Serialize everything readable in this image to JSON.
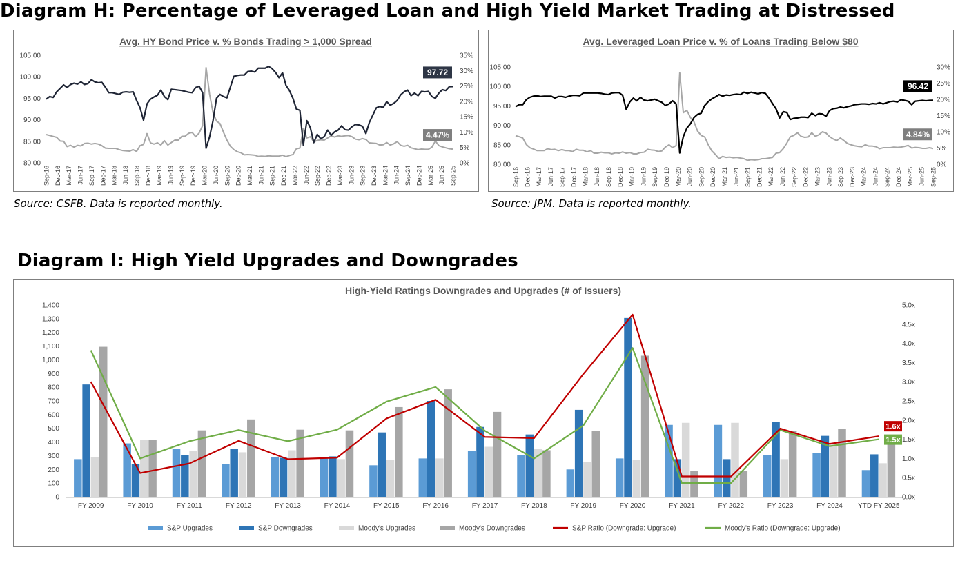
{
  "header_h": "Diagram H: Percentage of Leveraged Loan and High Yield Market Trading at Distressed",
  "header_i": "Diagram I: High Yield Upgrades and Downgrades",
  "source1": "Source: CSFB. Data is reported monthly.",
  "source2": "Source: JPM. Data is reported monthly.",
  "colors": {
    "dark_line": "#1f2535",
    "black_line": "#000000",
    "gray_line": "#a6a6a6",
    "label_dark": "#2e3646",
    "label_gray": "#7f7f7f",
    "sp_up": "#5b9bd5",
    "sp_down": "#2e75b6",
    "moody_up": "#d9d9d9",
    "moody_down": "#a6a6a6",
    "sp_ratio": "#c00000",
    "moody_ratio": "#70ad47"
  },
  "chart_data": [
    {
      "id": "hy",
      "type": "line",
      "title": "Avg. HY Bond Price v. % Bonds Trading > 1,000 Spread",
      "y_left": {
        "min": 80,
        "max": 105,
        "ticks": [
          "105.00",
          "100.00",
          "95.00",
          "90.00",
          "85.00",
          "80.00"
        ]
      },
      "y_right": {
        "min": 0,
        "max": 35,
        "ticks": [
          "35%",
          "30%",
          "25%",
          "20%",
          "15%",
          "10%",
          "5%",
          "0%"
        ]
      },
      "x_labels": [
        "Sep-16",
        "Dec-16",
        "Mar-17",
        "Jun-17",
        "Sep-17",
        "Dec-17",
        "Mar-18",
        "Jun-18",
        "Sep-18",
        "Dec-18",
        "Mar-19",
        "Jun-19",
        "Sep-19",
        "Dec-19",
        "Mar-20",
        "Jun-20",
        "Sep-20",
        "Dec-20",
        "Mar-21",
        "Jun-21",
        "Sep-21",
        "Dec-21",
        "Mar-22",
        "Jun-22",
        "Sep-22",
        "Dec-22",
        "Mar-23",
        "Jun-23",
        "Sep-23",
        "Dec-23",
        "Mar-24",
        "Jun-24",
        "Sep-24",
        "Dec-24",
        "Mar-25",
        "Jun-25",
        "Sep-25"
      ],
      "series": [
        {
          "name": "Avg. HY Bond Price",
          "axis": "left",
          "values": [
            94.8,
            95.4,
            95.2,
            96.5,
            97.3,
            98.1,
            97.5,
            98.2,
            98.5,
            98.3,
            98.8,
            98.2,
            98.4,
            99.3,
            98.8,
            98.6,
            98.7,
            97.6,
            96.3,
            96.3,
            96.1,
            95.9,
            96.4,
            96.5,
            96.4,
            96.5,
            94.5,
            92.8,
            89.9,
            93.7,
            94.8,
            95.3,
            95.7,
            96.9,
            95.4,
            94.7,
            97.1,
            97.0,
            96.9,
            96.8,
            96.6,
            96.4,
            96.3,
            97.5,
            97.8,
            96.3,
            83.4,
            86.0,
            89.8,
            95.0,
            95.9,
            95.4,
            95.1,
            97.6,
            100.1,
            100.3,
            100.4,
            100.4,
            101.2,
            101.3,
            101.1,
            102.0,
            102.0,
            102.0,
            102.4,
            101.9,
            101.0,
            99.8,
            100.9,
            98.0,
            96.8,
            95.0,
            92.5,
            92.2,
            84.1,
            89.8,
            88.2,
            84.7,
            86.6,
            85.6,
            86.1,
            87.6,
            86.4,
            87.2,
            87.6,
            88.6,
            87.7,
            87.6,
            88.4,
            88.9,
            88.8,
            88.5,
            86.8,
            89.4,
            91.1,
            92.8,
            93.1,
            92.9,
            94.2,
            93.4,
            93.8,
            94.5,
            95.8,
            96.5,
            96.9,
            95.6,
            96.2,
            95.6,
            96.6,
            96.5,
            96.6,
            95.4,
            95.0,
            96.2,
            97.0,
            96.8,
            97.7,
            97.72
          ]
        },
        {
          "name": "% Bonds Trading > 1,000 Spread",
          "axis": "right",
          "values": [
            9.2,
            8.9,
            8.6,
            8.3,
            7.1,
            7.0,
            5.3,
            5.7,
            5.1,
            5.7,
            5.5,
            6.3,
            6.4,
            6.1,
            6.3,
            6.1,
            5.6,
            4.8,
            4.7,
            4.7,
            4.7,
            4.3,
            4.0,
            3.9,
            3.8,
            4.3,
            3.7,
            5.6,
            6.0,
            9.5,
            6.5,
            6.1,
            6.5,
            5.8,
            7.2,
            5.8,
            6.6,
            7.4,
            7.4,
            8.6,
            8.7,
            9.6,
            9.9,
            8.5,
            9.7,
            12.1,
            31.0,
            22.4,
            16.3,
            13.6,
            12.8,
            10.0,
            7.4,
            5.4,
            4.3,
            3.6,
            3.3,
            2.6,
            2.7,
            2.6,
            2.5,
            2.1,
            2.2,
            2.1,
            2.3,
            2.2,
            2.2,
            2.2,
            2.5,
            2.0,
            2.4,
            2.7,
            4.6,
            4.8,
            11.2,
            8.1,
            8.5,
            6.8,
            7.3,
            7.5,
            7.4,
            8.1,
            8.8,
            8.4,
            8.8,
            8.6,
            8.8,
            8.9,
            8.5,
            7.7,
            7.5,
            7.9,
            7.6,
            6.5,
            6.4,
            6.3,
            5.8,
            5.9,
            6.6,
            5.8,
            6.2,
            6.9,
            5.7,
            5.4,
            5.7,
            4.9,
            4.6,
            4.3,
            4.5,
            4.4,
            4.4,
            5.1,
            7.1,
            5.6,
            5.2,
            4.9,
            4.6,
            4.47
          ]
        }
      ],
      "last_labels": [
        "97.72",
        "4.47%"
      ]
    },
    {
      "id": "ll",
      "type": "line",
      "title": "Avg. Leveraged Loan Price v. % of Loans Trading Below $80",
      "y_left": {
        "min": 80,
        "max": 105,
        "ticks": [
          "105.00",
          "100.00",
          "95.00",
          "90.00",
          "85.00",
          "80.00"
        ]
      },
      "y_right": {
        "min": 0,
        "max": 30,
        "ticks": [
          "30%",
          "25%",
          "20%",
          "15%",
          "10%",
          "5%",
          "0%"
        ]
      },
      "x_labels": [
        "Sep-16",
        "Dec-16",
        "Mar-17",
        "Jun-17",
        "Sep-17",
        "Dec-17",
        "Mar-18",
        "Jun-18",
        "Sep-18",
        "Dec-18",
        "Mar-19",
        "Jun-19",
        "Sep-19",
        "Dec-19",
        "Mar-20",
        "Jun-20",
        "Sep-20",
        "Dec-20",
        "Mar-21",
        "Jun-21",
        "Sep-21",
        "Dec-21",
        "Mar-22",
        "Jun-22",
        "Sep-22",
        "Dec-22",
        "Mar-23",
        "Jun-23",
        "Sep-23",
        "Dec-23",
        "Mar-24",
        "Jun-24",
        "Sep-24",
        "Dec-24",
        "Mar-25",
        "Jun-25",
        "Sep-25"
      ],
      "series": [
        {
          "name": "Avg. Leveraged Loan Price",
          "axis": "left",
          "values": [
            94.8,
            95.3,
            95.3,
            96.6,
            97.2,
            97.5,
            97.6,
            97.4,
            97.5,
            97.5,
            97.5,
            97.0,
            97.4,
            97.4,
            97.2,
            97.5,
            97.7,
            97.7,
            97.6,
            98.3,
            98.3,
            98.3,
            98.3,
            98.3,
            98.2,
            98.0,
            97.9,
            98.3,
            98.4,
            98.4,
            97.7,
            94.1,
            96.0,
            97.0,
            96.3,
            97.2,
            96.5,
            96.3,
            96.5,
            96.7,
            96.3,
            95.9,
            95.1,
            95.5,
            96.3,
            95.5,
            82.9,
            87.1,
            89.3,
            90.4,
            92.0,
            92.8,
            93.1,
            95.1,
            96.1,
            96.8,
            97.3,
            97.9,
            97.5,
            97.8,
            97.7,
            97.9,
            98.0,
            97.9,
            98.5,
            98.2,
            98.5,
            98.3,
            98.1,
            98.4,
            98.2,
            97.0,
            95.6,
            94.2,
            91.9,
            93.5,
            93.3,
            91.5,
            91.8,
            91.9,
            92.1,
            92.1,
            92.0,
            93.1,
            92.5,
            93.0,
            92.9,
            92.3,
            93.8,
            94.3,
            94.4,
            94.7,
            94.5,
            94.8,
            95.0,
            95.3,
            95.4,
            95.5,
            95.5,
            95.4,
            95.6,
            95.5,
            95.8,
            95.5,
            95.8,
            96.1,
            96.2,
            96.0,
            96.6,
            96.4,
            96.2,
            95.3,
            96.2,
            96.3,
            96.4,
            96.3,
            96.4,
            96.42
          ]
        },
        {
          "name": "% of Loans Trading Below $80",
          "axis": "right",
          "values": [
            8.8,
            8.5,
            8.1,
            6.1,
            5.1,
            4.7,
            4.2,
            4.2,
            4.2,
            4.8,
            4.5,
            4.6,
            4.2,
            4.5,
            4.2,
            4.2,
            3.9,
            4.6,
            4.3,
            4.3,
            3.8,
            4.2,
            3.4,
            3.4,
            3.7,
            3.5,
            3.5,
            3.2,
            3.5,
            3.4,
            3.8,
            3.4,
            3.6,
            3.2,
            3.2,
            3.6,
            3.7,
            4.6,
            4.4,
            4.3,
            3.9,
            4.1,
            5.3,
            6.0,
            5.1,
            5.8,
            28.2,
            15.9,
            16.6,
            14.4,
            13.1,
            10.2,
            8.9,
            8.4,
            6.0,
            4.1,
            3.0,
            1.7,
            2.4,
            2.1,
            2.2,
            2.0,
            2.1,
            1.9,
            1.7,
            1.2,
            1.4,
            1.3,
            1.4,
            1.7,
            1.7,
            1.9,
            2.1,
            3.4,
            3.6,
            4.8,
            6.5,
            8.5,
            8.9,
            9.7,
            8.6,
            8.3,
            8.4,
            9.7,
            8.6,
            9.1,
            10.0,
            9.6,
            8.5,
            7.8,
            7.3,
            8.1,
            7.3,
            6.4,
            6.0,
            5.7,
            5.5,
            5.4,
            6.0,
            5.6,
            5.6,
            5.4,
            4.8,
            5.1,
            5.1,
            5.1,
            5.3,
            5.2,
            5.3,
            5.5,
            5.8,
            5.0,
            5.2,
            5.1,
            4.9,
            4.9,
            5.1,
            4.84
          ]
        }
      ],
      "last_labels": [
        "96.42",
        "4.84%"
      ]
    },
    {
      "id": "rating",
      "type": "bar",
      "title": "High-Yield Ratings Downgrades and Upgrades (# of Issuers)",
      "categories": [
        "FY 2009",
        "FY 2010",
        "FY 2011",
        "FY 2012",
        "FY 2013",
        "FY 2014",
        "FY 2015",
        "FY 2016",
        "FY 2017",
        "FY 2018",
        "FY 2019",
        "FY 2020",
        "FY 2021",
        "FY 2022",
        "FY 2023",
        "FY 2024",
        "YTD FY 2025"
      ],
      "y_left": {
        "min": 0,
        "max": 1400,
        "ticks": [
          "1,400",
          "1,300",
          "1,200",
          "1,100",
          "1,000",
          "900",
          "800",
          "700",
          "600",
          "500",
          "400",
          "300",
          "200",
          "100",
          "0"
        ]
      },
      "y_right": {
        "min": 0,
        "max": 5,
        "ticks": [
          "5.0x",
          "4.5x",
          "4.0x",
          "3.5x",
          "3.0x",
          "2.5x",
          "2.0x",
          "1.5x",
          "1.0x",
          "0.5x",
          "0.0x"
        ]
      },
      "series": [
        {
          "name": "S&P Upgrades",
          "type": "bar",
          "values": [
            275,
            390,
            350,
            240,
            290,
            290,
            230,
            280,
            335,
            305,
            200,
            280,
            525,
            525,
            305,
            320,
            195
          ]
        },
        {
          "name": "S&P Downgrades",
          "type": "bar",
          "values": [
            820,
            240,
            305,
            350,
            285,
            295,
            470,
            700,
            510,
            455,
            635,
            1305,
            275,
            275,
            545,
            445,
            310
          ]
        },
        {
          "name": "Moody's Upgrades",
          "type": "bar",
          "values": [
            290,
            415,
            335,
            325,
            340,
            275,
            270,
            280,
            365,
            350,
            255,
            270,
            540,
            540,
            275,
            390,
            245
          ]
        },
        {
          "name": "Moody's Downgrades",
          "type": "bar",
          "values": [
            1095,
            415,
            485,
            565,
            490,
            485,
            655,
            785,
            620,
            340,
            480,
            1030,
            190,
            190,
            480,
            495,
            390
          ]
        },
        {
          "name": "S&P Ratio (Downgrade: Upgrade)",
          "type": "line",
          "values": [
            3.0,
            0.62,
            0.87,
            1.46,
            0.98,
            1.02,
            2.04,
            2.53,
            1.56,
            1.53,
            3.2,
            4.75,
            0.53,
            0.53,
            1.78,
            1.38,
            1.58
          ]
        },
        {
          "name": "Moody's Ratio (Downgrade: Upgrade)",
          "type": "line",
          "values": [
            3.82,
            1.0,
            1.45,
            1.74,
            1.45,
            1.75,
            2.48,
            2.86,
            1.72,
            1.0,
            1.86,
            3.88,
            0.36,
            0.36,
            1.74,
            1.32,
            1.5
          ]
        }
      ],
      "last_labels": [
        "1.6x",
        "1.5x"
      ]
    }
  ]
}
